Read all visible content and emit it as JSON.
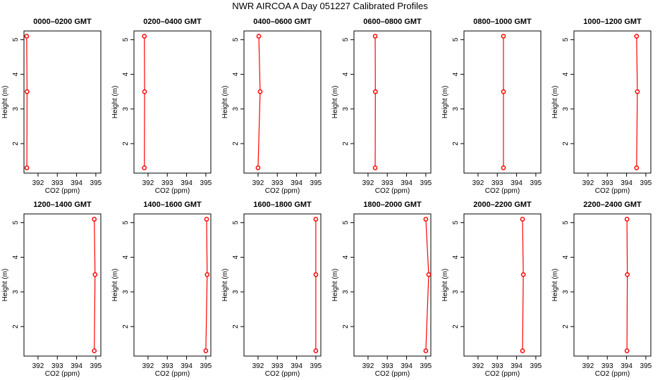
{
  "chart_data": {
    "type": "line",
    "title": "NWR AIRCOA A  Day 051227  Calibrated Profiles",
    "xlabel": "CO2 (ppm)",
    "ylabel": "Height (m)",
    "xlim": [
      391.27,
      395.26
    ],
    "ylim": [
      1.148,
      5.252
    ],
    "xticks": [
      392,
      393,
      394,
      395
    ],
    "yticks": [
      2,
      3,
      4,
      5
    ],
    "heights": [
      1.3,
      3.5,
      5.1
    ],
    "grid": false,
    "color": "#ff0000",
    "panels": [
      {
        "title": "0000–0200 GMT",
        "values": [
          391.42,
          391.43,
          391.41
        ]
      },
      {
        "title": "0200–0400 GMT",
        "values": [
          391.81,
          391.82,
          391.81
        ]
      },
      {
        "title": "0400–0600 GMT",
        "values": [
          392.0,
          392.11,
          392.04
        ]
      },
      {
        "title": "0600–0800 GMT",
        "values": [
          392.37,
          392.38,
          392.37
        ]
      },
      {
        "title": "0800–1000 GMT",
        "values": [
          393.32,
          393.32,
          393.32
        ]
      },
      {
        "title": "1000–1200 GMT",
        "values": [
          394.52,
          394.56,
          394.52
        ]
      },
      {
        "title": "1200–1400 GMT",
        "values": [
          394.92,
          394.96,
          394.92
        ]
      },
      {
        "title": "1400–1600 GMT",
        "values": [
          395.0,
          395.07,
          395.04
        ]
      },
      {
        "title": "1600–1800 GMT",
        "values": [
          395.0,
          395.0,
          395.0
        ]
      },
      {
        "title": "1800–2000 GMT",
        "values": [
          395.0,
          395.15,
          395.0
        ]
      },
      {
        "title": "2000–2200 GMT",
        "values": [
          394.31,
          394.35,
          394.31
        ]
      },
      {
        "title": "2200–2400 GMT",
        "values": [
          394.02,
          394.04,
          394.02
        ]
      }
    ]
  }
}
